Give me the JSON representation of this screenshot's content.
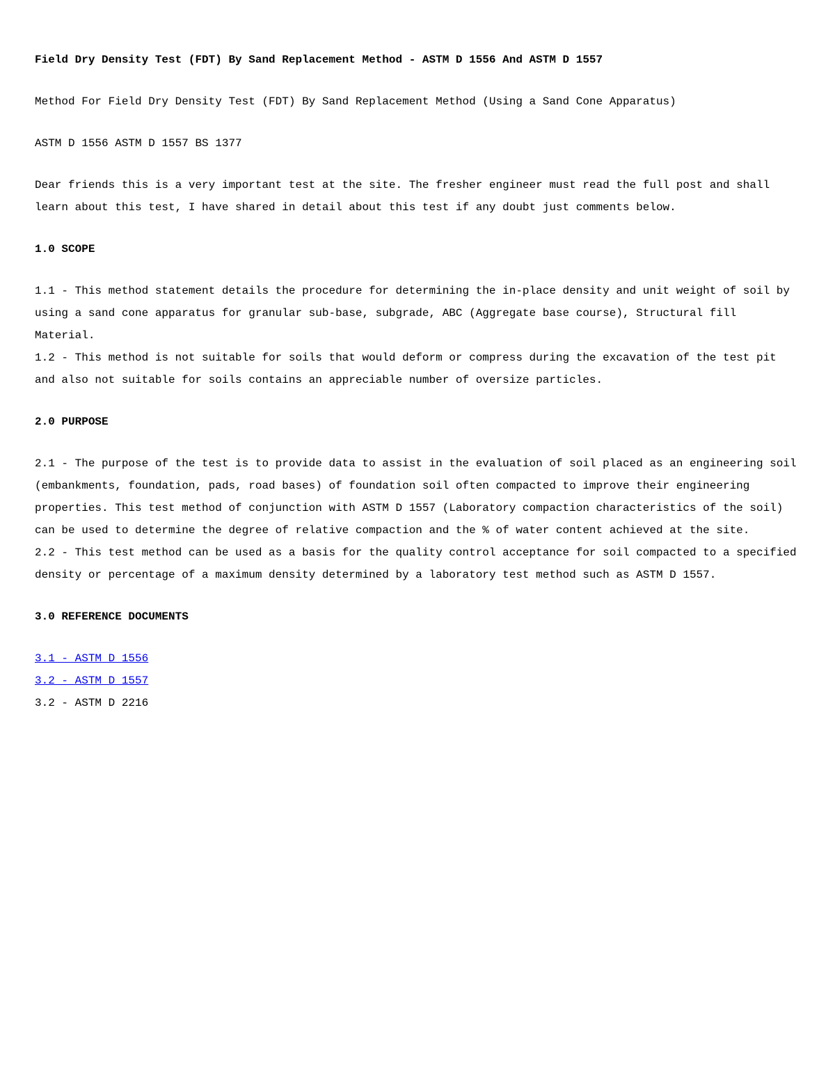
{
  "doc": {
    "title": "Field Dry Density Test (FDT) By Sand Replacement Method - ASTM D 1556 And ASTM D 1557",
    "intro1": "Method For Field Dry Density Test (FDT) By Sand Replacement Method (Using a Sand Cone Apparatus)",
    "intro2": "ASTM D 1556 ASTM D 1557 BS 1377",
    "intro3": "Dear friends this is a very important test at the site. The fresher engineer must read the full post and shall learn about this test, I have shared in detail about this test if any doubt just comments below.",
    "sections": {
      "scope": {
        "heading": "1.0 SCOPE",
        "p1": "1.1 - This method statement details the procedure for determining the in-place density and unit weight of soil by using a sand cone apparatus for granular sub-base, subgrade, ABC (Aggregate base course), Structural fill Material.",
        "p2": "1.2 - This method is not suitable for soils that would deform or compress during the excavation of the test pit and also not suitable for soils contains an appreciable number of oversize particles."
      },
      "purpose": {
        "heading": "2.0 PURPOSE",
        "p1": "2.1 - The purpose of the test is to provide data to assist in the evaluation of soil placed as an engineering soil (embankments, foundation, pads, road bases) of foundation soil often compacted to improve their engineering properties. This test method of conjunction with ASTM D 1557 (Laboratory compaction characteristics of the soil) can be used to determine the degree of relative compaction and the % of water content achieved at the site.",
        "p2": "2.2 - This test method can be used as a basis for the quality control acceptance for soil compacted to a specified density or percentage of a maximum density determined by a laboratory test method such as ASTM D 1557."
      },
      "refs": {
        "heading": "3.0 REFERENCE DOCUMENTS",
        "r1": "3.1 - ASTM D 1556",
        "r2": "3.2 - ASTM D 1557",
        "r3": "3.2 - ASTM D 2216"
      }
    },
    "colors": {
      "text": "#000000",
      "link": "#0000ee",
      "background": "#ffffff"
    },
    "typography": {
      "font_family": "Courier New",
      "body_fontsize_pt": 12,
      "line_height": 2.0,
      "title_weight": "bold",
      "heading_weight": "bold"
    }
  }
}
